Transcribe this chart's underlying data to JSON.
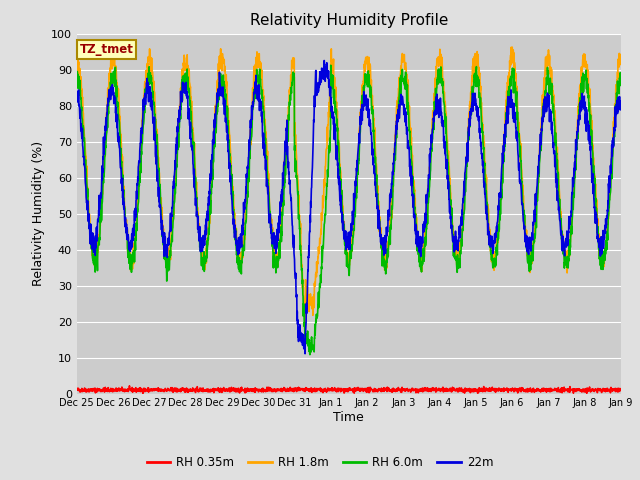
{
  "title": "Relativity Humidity Profile",
  "ylabel": "Relativity Humidity (%)",
  "xlabel": "Time",
  "annotation": "TZ_tmet",
  "ylim": [
    0,
    100
  ],
  "fig_facecolor": "#e0e0e0",
  "ax_facecolor": "#cccccc",
  "colors": {
    "rh035": "#ff0000",
    "rh18": "#ffa500",
    "rh60": "#00bb00",
    "rh22": "#0000dd"
  },
  "legend_labels": [
    "RH 0.35m",
    "RH 1.8m",
    "RH 6.0m",
    "22m"
  ],
  "x_tick_labels": [
    "Dec 25",
    "Dec 26",
    "Dec 27",
    "Dec 28",
    "Dec 29",
    "Dec 30",
    "Dec 31",
    "Jan 1",
    "Jan 2",
    "Jan 3",
    "Jan 4",
    "Jan 5",
    "Jan 6",
    "Jan 7",
    "Jan 8",
    "Jan 9"
  ],
  "n_days": 15
}
